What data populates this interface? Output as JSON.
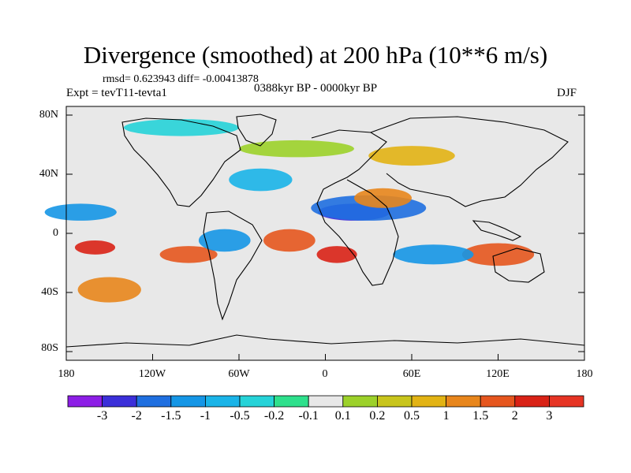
{
  "title": "Divergence (smoothed) at 200 hPa (10**6 m/s)",
  "stats": "rmsd= 0.623943 diff= -0.00413878",
  "experiment": "Expt = tevT11-tevta1",
  "period": "0388kyr BP - 0000kyr BP",
  "season": "DJF",
  "y_axis": {
    "tick_labels": [
      "80N",
      "40N",
      "0",
      "40S",
      "80S"
    ]
  },
  "x_axis": {
    "tick_labels": [
      "180",
      "120W",
      "60W",
      "0",
      "60E",
      "120E",
      "180"
    ]
  },
  "colorbar": {
    "labels": [
      "-3",
      "-2",
      "-1.5",
      "-1",
      "-0.5",
      "-0.2",
      "-0.1",
      "0.1",
      "0.2",
      "0.5",
      "1",
      "1.5",
      "2",
      "3"
    ],
    "colors": [
      "#8d1ee6",
      "#3b2fd9",
      "#1f6fe0",
      "#1596e6",
      "#1ab4e8",
      "#26d3d8",
      "#2ee08c",
      "#e8e8e8",
      "#9cd12a",
      "#c8c51c",
      "#e2b314",
      "#e8861c",
      "#e6561e",
      "#d92216",
      "#e63424"
    ]
  },
  "map": {
    "background_color": "#e8e8e8",
    "anomalies": [
      {
        "name": "blue-atlantic",
        "lon": -45,
        "lat": 38,
        "color": "#1ab4e8",
        "rx": 22,
        "ry": 8
      },
      {
        "name": "blue-africa",
        "lon": 20,
        "lat": 15,
        "color": "#3b2fd9",
        "rx": 25,
        "ry": 6
      },
      {
        "name": "blue-arabia",
        "lon": 30,
        "lat": 18,
        "color": "#1f6fe0",
        "rx": 40,
        "ry": 9
      },
      {
        "name": "red-southatlantic",
        "lon": -25,
        "lat": -5,
        "color": "#e6561e",
        "rx": 18,
        "ry": 8
      },
      {
        "name": "red-angola",
        "lon": 8,
        "lat": -15,
        "color": "#d92216",
        "rx": 14,
        "ry": 6
      },
      {
        "name": "red-pacific",
        "lon": -160,
        "lat": -10,
        "color": "#d92216",
        "rx": 14,
        "ry": 5
      },
      {
        "name": "red-southpacific",
        "lon": -95,
        "lat": -15,
        "color": "#e6561e",
        "rx": 20,
        "ry": 6
      },
      {
        "name": "red-indonesia",
        "lon": 120,
        "lat": -15,
        "color": "#e6561e",
        "rx": 25,
        "ry": 8
      },
      {
        "name": "orange-nafrica",
        "lon": 40,
        "lat": 25,
        "color": "#e8861c",
        "rx": 20,
        "ry": 7
      },
      {
        "name": "blue-indian",
        "lon": 75,
        "lat": -15,
        "color": "#1596e6",
        "rx": 28,
        "ry": 7
      },
      {
        "name": "orange-southocean",
        "lon": -150,
        "lat": -40,
        "color": "#e8861c",
        "rx": 22,
        "ry": 9
      },
      {
        "name": "green-north",
        "lon": -20,
        "lat": 60,
        "color": "#9cd12a",
        "rx": 40,
        "ry": 6
      },
      {
        "name": "cyan-arctic",
        "lon": -100,
        "lat": 75,
        "color": "#26d3d8",
        "rx": 40,
        "ry": 6
      },
      {
        "name": "orange-eurasia",
        "lon": 60,
        "lat": 55,
        "color": "#e2b314",
        "rx": 30,
        "ry": 7
      },
      {
        "name": "blue-pacificnorth",
        "lon": -170,
        "lat": 15,
        "color": "#1596e6",
        "rx": 25,
        "ry": 6
      },
      {
        "name": "blue-southamerica",
        "lon": -70,
        "lat": -5,
        "color": "#1596e6",
        "rx": 18,
        "ry": 8
      }
    ]
  }
}
